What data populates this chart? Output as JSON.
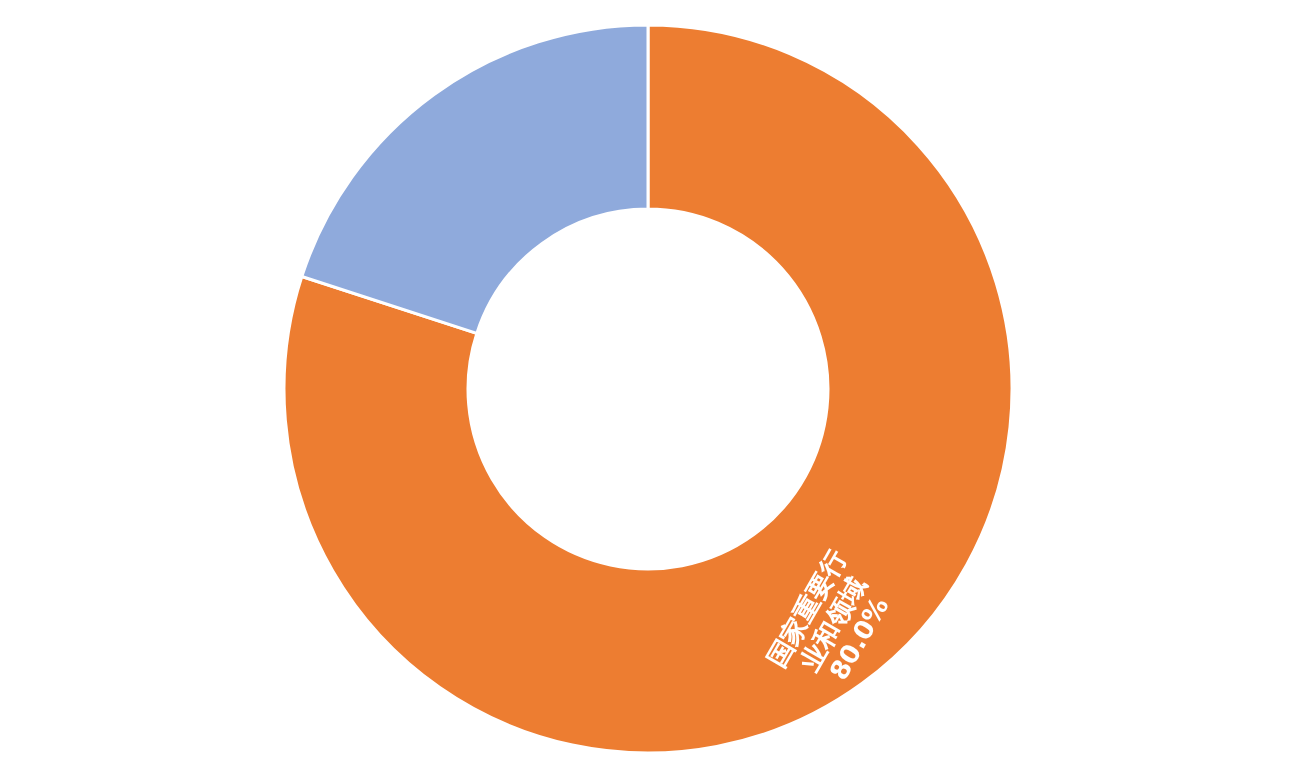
{
  "chart_data": {
    "type": "donut",
    "categories": [
      "国家重要行业和领域",
      null
    ],
    "values": [
      80.0,
      20.0
    ],
    "colors": [
      "#ed7d31",
      "#8faadc"
    ],
    "value_labels": [
      "80.0%",
      null
    ]
  }
}
